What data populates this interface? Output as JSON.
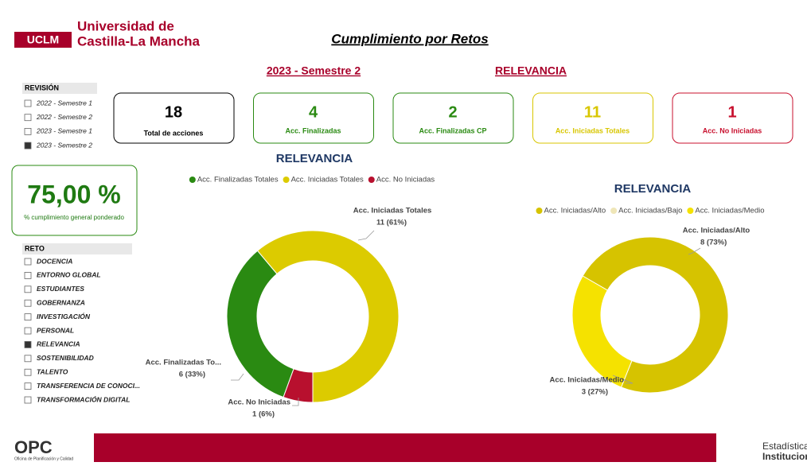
{
  "header": {
    "logo": "UCLM",
    "university_line1": "Universidad de",
    "university_line2": "Castilla-La Mancha",
    "title": "Cumplimiento por Retos",
    "period": "2023 - Semestre 2",
    "challenge": "RELEVANCIA"
  },
  "revision_filter": {
    "title": "REVISIÓN",
    "items": [
      "2022 - Semestre 1",
      "2022 - Semestre 2",
      "2023 - Semestre 1",
      "2023 - Semestre 2"
    ],
    "selected": 3
  },
  "kpis": [
    {
      "value": 18,
      "label": "Total de acciones",
      "color": "#000000"
    },
    {
      "value": 4,
      "label": "Acc. Finalizadas",
      "color": "#2a8a12"
    },
    {
      "value": 2,
      "label": "Acc. Finalizadas CP",
      "color": "#2a8a12"
    },
    {
      "value": 11,
      "label": "Acc. Iniciadas Totales",
      "color": "#d8c600"
    },
    {
      "value": 1,
      "label": "Acc. No Iniciadas",
      "color": "#c8102e"
    }
  ],
  "overall": {
    "value": "75,00 %",
    "label": "% cumplimiento general ponderado"
  },
  "reto_filter": {
    "title": "RETO",
    "items": [
      "DOCENCIA",
      "ENTORNO GLOBAL",
      "ESTUDIANTES",
      "GOBERNANZA",
      "INVESTIGACIÓN",
      "PERSONAL",
      "RELEVANCIA",
      "SOSTENIBILIDAD",
      "TALENTO",
      "TRANSFERENCIA DE CONOCI...",
      "TRANSFORMACIÓN DIGITAL"
    ],
    "selected": 6
  },
  "chart_data": [
    {
      "type": "donut",
      "title": "RELEVANCIA",
      "categories": [
        "Acc. Finalizadas Totales",
        "Acc. Iniciadas Totales",
        "Acc. No Iniciadas"
      ],
      "values": [
        6,
        11,
        1
      ],
      "value_labels": [
        "6 (33%)",
        "11 (61%)",
        "1 (6%)"
      ],
      "label_names": [
        "Acc. Finalizadas To...",
        "Acc. Iniciadas Totales",
        "Acc. No Iniciadas"
      ],
      "colors": [
        "#2a8a12",
        "#dccb00",
        "#b8102e"
      ],
      "legend": "top"
    },
    {
      "type": "donut",
      "title": "RELEVANCIA",
      "categories": [
        "Acc. Iniciadas/Alto",
        "Acc. Iniciadas/Bajo",
        "Acc. Iniciadas/Medio"
      ],
      "values": [
        8,
        0,
        3
      ],
      "value_labels": [
        "8 (73%)",
        null,
        "3 (27%)"
      ],
      "label_names": [
        "Acc. Iniciadas/Alto",
        null,
        "Acc. Iniciadas/Medio"
      ],
      "colors": [
        "#d6c300",
        "#efe6b8",
        "#f5e200"
      ],
      "legend": "top"
    }
  ],
  "footer": {
    "left_logo": "OPC",
    "left_caption": "Oficina de Planificación y Calidad",
    "right_line1": "Estadística",
    "right_line2": "Institucional"
  }
}
